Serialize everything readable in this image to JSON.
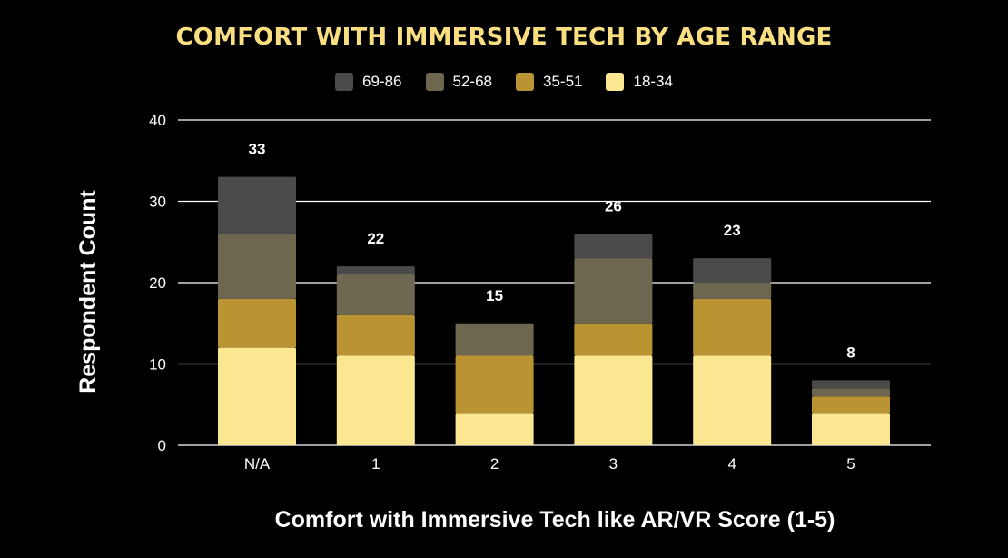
{
  "chart_data": {
    "type": "bar",
    "stacked": true,
    "title": "COMFORT WITH IMMERSIVE TECH BY AGE RANGE",
    "xlabel": "Comfort with Immersive Tech like AR/VR Score (1-5)",
    "ylabel": "Respondent Count",
    "categories": [
      "N/A",
      "1",
      "2",
      "3",
      "4",
      "5"
    ],
    "yticks": [
      "0",
      "10",
      "20",
      "30",
      "40"
    ],
    "ylim": [
      0,
      40
    ],
    "grid": true,
    "legend_position": "top",
    "series": [
      {
        "name": "18-34",
        "color": "#FBE691",
        "values": [
          12,
          11,
          4,
          11,
          11,
          4
        ]
      },
      {
        "name": "35-51",
        "color": "#BA9433",
        "values": [
          6,
          5,
          7,
          4,
          7,
          2
        ]
      },
      {
        "name": "52-68",
        "color": "#6E6750",
        "values": [
          8,
          5,
          4,
          8,
          2,
          1
        ]
      },
      {
        "name": "69-86",
        "color": "#4A4A4A",
        "values": [
          7,
          1,
          0,
          3,
          3,
          1
        ]
      }
    ],
    "totals": [
      "33",
      "22",
      "15",
      "26",
      "23",
      "8"
    ],
    "legend": [
      {
        "label": "69-86",
        "color": "#4A4A4A"
      },
      {
        "label": "52-68",
        "color": "#6E6750"
      },
      {
        "label": "35-51",
        "color": "#BA9433"
      },
      {
        "label": "18-34",
        "color": "#FBE691"
      }
    ]
  }
}
